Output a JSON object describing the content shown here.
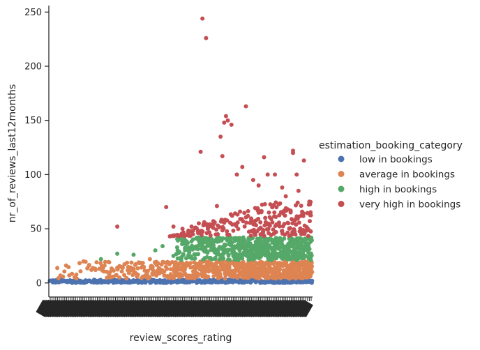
{
  "chart_data": {
    "type": "scatter",
    "title": "",
    "xlabel": "review_scores_rating",
    "ylabel": "nr_of_reviews_last12months",
    "ylim": [
      -13,
      256
    ],
    "yticks": [
      "0",
      "50",
      "100",
      "150",
      "200",
      "250"
    ],
    "x_category_count": 145,
    "grid": false,
    "legend": {
      "title": "estimation_booking_category",
      "placement": "right"
    },
    "series": [
      {
        "name": "low in bookings",
        "color": "#4c72b0",
        "y_range": [
          0,
          3
        ],
        "x_start": 0
      },
      {
        "name": "average in bookings",
        "color": "#dd8452",
        "y_range": [
          4,
          20
        ],
        "x_start": 4,
        "extra_points": [
          [
            25,
            12
          ],
          [
            30,
            16
          ],
          [
            33,
            10
          ],
          [
            40,
            14
          ],
          [
            55,
            22
          ]
        ]
      },
      {
        "name": "high in bookings",
        "color": "#55a868",
        "y_range": [
          21,
          42
        ],
        "x_start": 70,
        "extra_points": [
          [
            28,
            22
          ],
          [
            37,
            27
          ],
          [
            46,
            26
          ],
          [
            58,
            30
          ],
          [
            62,
            34
          ],
          [
            68,
            25
          ]
        ]
      },
      {
        "name": "very high in bookings",
        "color": "#c44e52",
        "y_range": [
          43,
          75
        ],
        "x_start": 66,
        "extra_points": [
          [
            37,
            52
          ],
          [
            64,
            70
          ],
          [
            68,
            52
          ],
          [
            73,
            50
          ],
          [
            78,
            52
          ],
          [
            82,
            55
          ],
          [
            85,
            56
          ],
          [
            87,
            50
          ],
          [
            88,
            54
          ],
          [
            90,
            57
          ],
          [
            92,
            71
          ],
          [
            83,
            121
          ],
          [
            84,
            244
          ],
          [
            86,
            226
          ],
          [
            94,
            135
          ],
          [
            95,
            117
          ],
          [
            96,
            148
          ],
          [
            97,
            154
          ],
          [
            98,
            150
          ],
          [
            100,
            146
          ],
          [
            103,
            100
          ],
          [
            106,
            107
          ],
          [
            108,
            163
          ],
          [
            112,
            95
          ],
          [
            115,
            90
          ],
          [
            118,
            116
          ],
          [
            120,
            100
          ],
          [
            124,
            100
          ],
          [
            128,
            88
          ],
          [
            130,
            80
          ],
          [
            134,
            122
          ],
          [
            134,
            120
          ],
          [
            136,
            100
          ],
          [
            140,
            113
          ],
          [
            137,
            85
          ],
          [
            143,
            75
          ]
        ]
      }
    ]
  }
}
